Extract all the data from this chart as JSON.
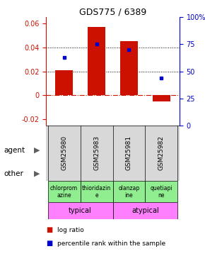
{
  "title": "GDS775 / 6389",
  "samples": [
    "GSM25980",
    "GSM25983",
    "GSM25981",
    "GSM25982"
  ],
  "log_ratios": [
    0.021,
    0.057,
    0.045,
    -0.005
  ],
  "percentile_ranks": [
    63,
    75,
    70,
    44
  ],
  "agents": [
    "chlorprom\nazine",
    "thioridazin\ne",
    "olanzap\nine",
    "quetiapi\nne"
  ],
  "agent_colors": [
    "#90ee90",
    "#90ee90",
    "#90ee90",
    "#90ee90"
  ],
  "other_labels": [
    "typical",
    "atypical"
  ],
  "typical_color": "#ff80ff",
  "atypical_color": "#ff80ff",
  "bar_color": "#cc1100",
  "dot_color": "#0000cc",
  "ylim_left": [
    -0.025,
    0.065
  ],
  "ylim_right": [
    0,
    100
  ],
  "yticks_left": [
    -0.02,
    0.0,
    0.02,
    0.04,
    0.06
  ],
  "yticks_right": [
    0,
    25,
    50,
    75,
    100
  ],
  "hline_y": [
    0.02,
    0.04
  ],
  "background_color": "#d8d8d8",
  "legend_log_ratio": "log ratio",
  "legend_percentile": "percentile rank within the sample"
}
